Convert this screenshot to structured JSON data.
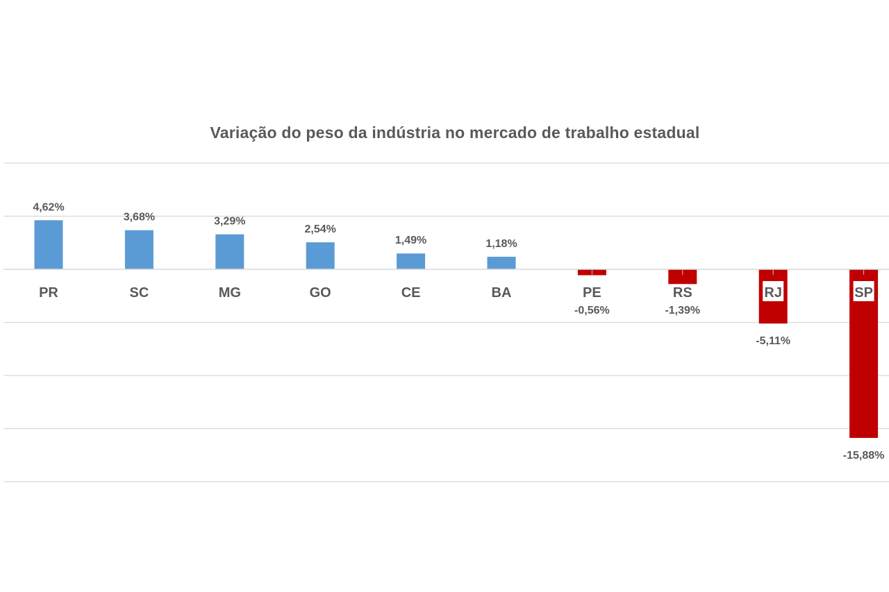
{
  "chart_data": {
    "type": "bar",
    "title": "Variação do peso da indústria no mercado de trabalho estadual",
    "categories": [
      "PR",
      "SC",
      "MG",
      "GO",
      "CE",
      "BA",
      "PE",
      "RS",
      "RJ",
      "SP"
    ],
    "values": [
      4.62,
      3.68,
      3.29,
      2.54,
      1.49,
      1.18,
      -0.56,
      -1.39,
      -5.11,
      -15.88
    ],
    "value_labels": [
      "4,62%",
      "3,68%",
      "3,29%",
      "2,54%",
      "1,49%",
      "1,18%",
      "-0,56%",
      "-1,39%",
      "-5,11%",
      "-15,88%"
    ],
    "ylim": [
      -20,
      10
    ],
    "grid": true,
    "legend": "none",
    "colors": {
      "positive": "#5B9BD5",
      "negative": "#C00000",
      "gridline": "#D9D9D9",
      "text": "#595959"
    }
  }
}
